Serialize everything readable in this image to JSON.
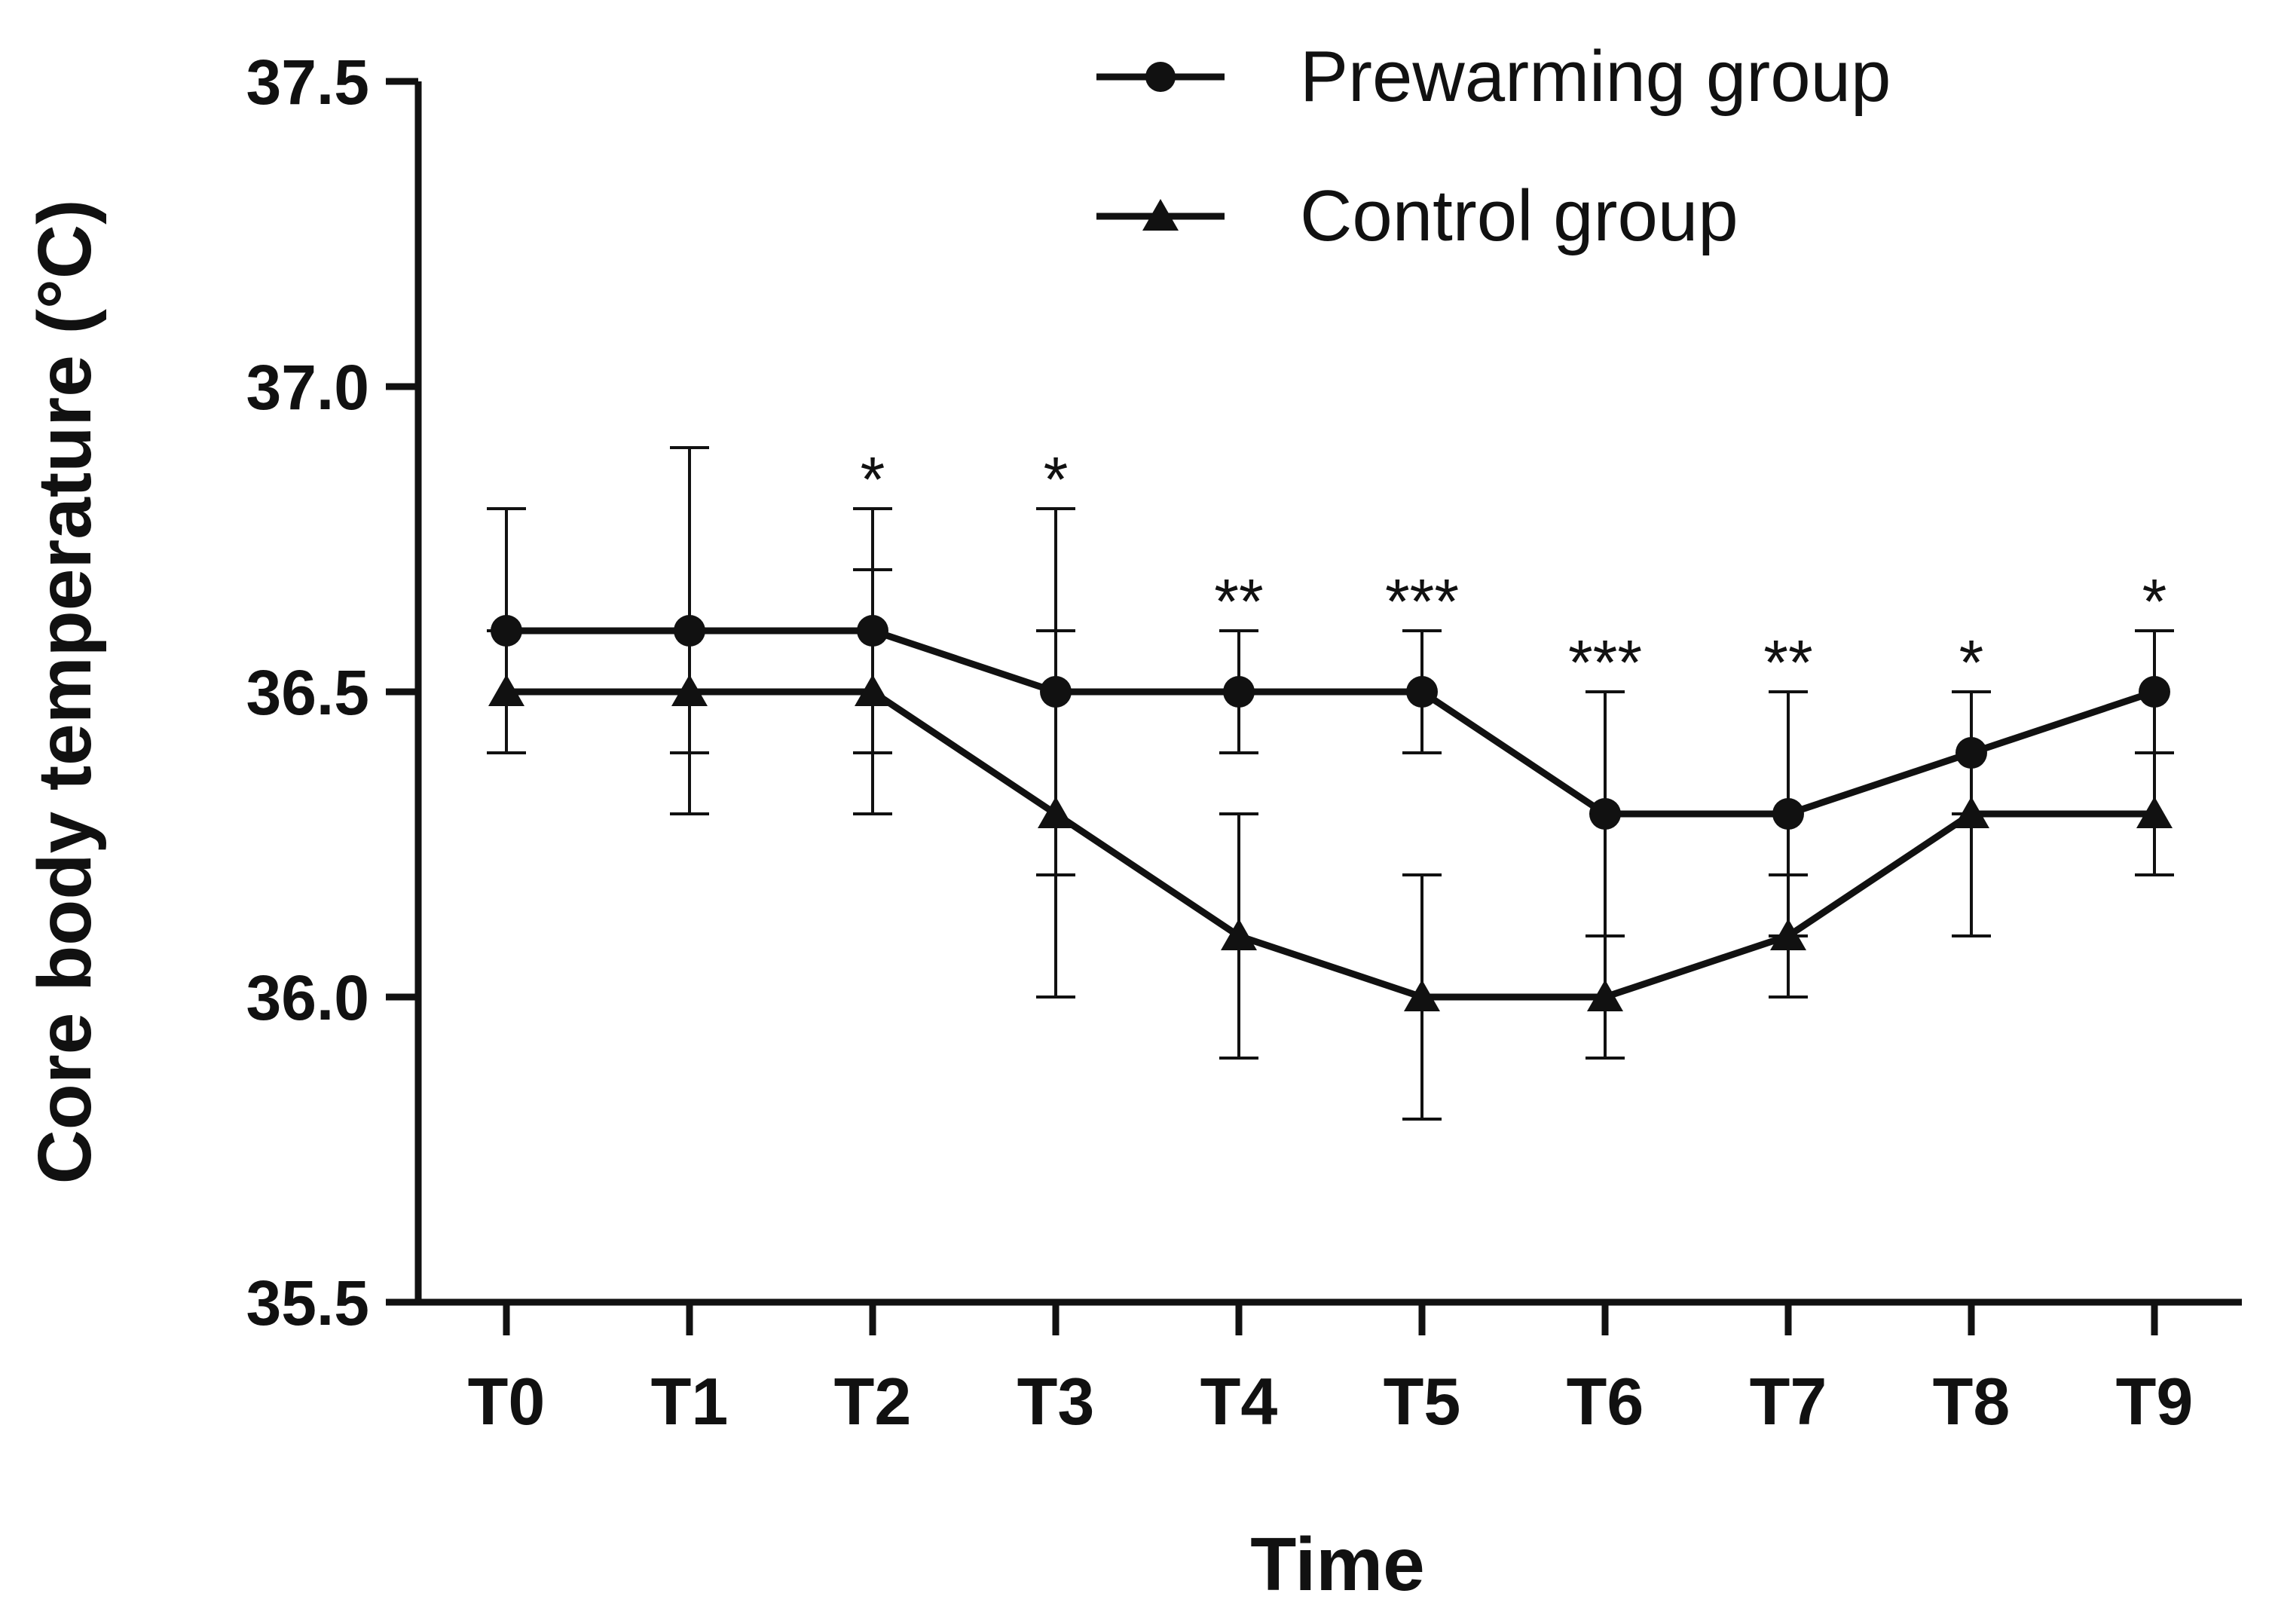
{
  "chart_data": {
    "type": "line",
    "title": "",
    "xlabel": "Time",
    "ylabel": "Core body temperature (°C)",
    "ylim": [
      35.5,
      37.5
    ],
    "yticks": [
      "35.5",
      "36.0",
      "36.5",
      "37.0",
      "37.5"
    ],
    "ytick_values": [
      35.5,
      36.0,
      36.5,
      37.0,
      37.5
    ],
    "categories": [
      "T0",
      "T1",
      "T2",
      "T3",
      "T4",
      "T5",
      "T6",
      "T7",
      "T8",
      "T9"
    ],
    "grid": false,
    "legend_position": "top-right",
    "series": [
      {
        "name": "Prewarming group",
        "marker": "circle",
        "values": [
          36.6,
          36.6,
          36.6,
          36.5,
          36.5,
          36.5,
          36.3,
          36.3,
          36.4,
          36.5
        ],
        "error": [
          0.2,
          0.3,
          0.2,
          0.3,
          0.1,
          0.1,
          0.2,
          0.2,
          0.1,
          0.1
        ]
      },
      {
        "name": "Control group",
        "marker": "triangle",
        "values": [
          36.5,
          36.5,
          36.5,
          36.3,
          36.1,
          36.0,
          36.0,
          36.1,
          36.3,
          36.3
        ],
        "error": [
          0.1,
          0.1,
          0.2,
          0.3,
          0.2,
          0.2,
          0.1,
          0.1,
          0.2,
          0.1
        ]
      }
    ],
    "significance": [
      "",
      "",
      "*",
      "*",
      "**",
      "***",
      "***",
      "**",
      "*",
      "*"
    ],
    "line_color": "#111111"
  }
}
